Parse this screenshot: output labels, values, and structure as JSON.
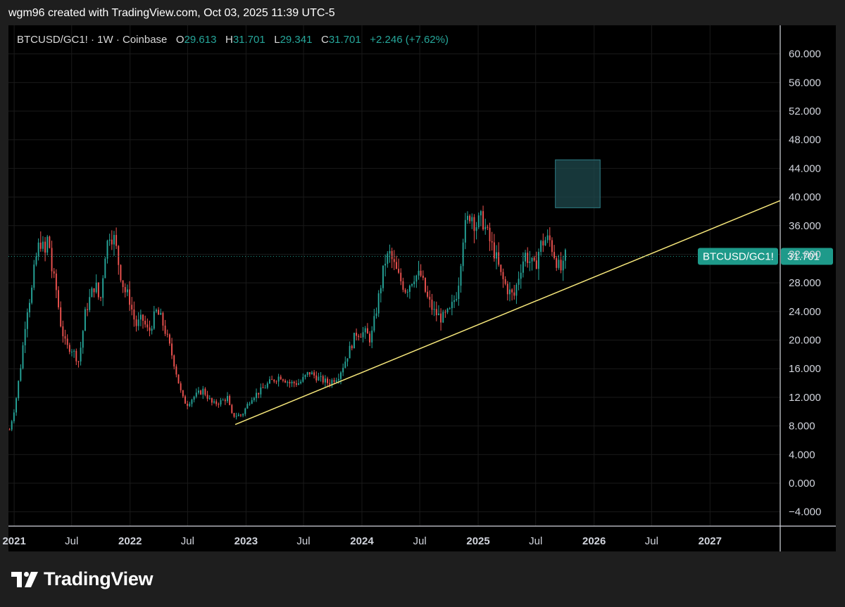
{
  "attribution": "wgm96 created with TradingView.com, Oct 03, 2025 11:39 UTC-5",
  "legend": {
    "symbol": "BTCUSD/GC1! · 1W · Coinbase",
    "open_label": "O",
    "open": "29.613",
    "high_label": "H",
    "high": "31.701",
    "low_label": "L",
    "low": "29.341",
    "close_label": "C",
    "close": "31.701",
    "change": "+2.246 (+7.62%)"
  },
  "logo_text": "TradingView",
  "colors": {
    "up": "#26a69a",
    "down": "#ef5350",
    "trendline": "#f5e67a",
    "zone": "#1f4a4e",
    "last_price_badge": "#1e9a8a",
    "background": "#000000",
    "grid": "#1a1a1a"
  },
  "chart_data": {
    "type": "candlestick",
    "symbol": "BTCUSD/GC1!",
    "interval": "1W",
    "exchange": "Coinbase",
    "ylim": [
      -6,
      64
    ],
    "y_ticks": [
      60,
      56,
      52,
      48,
      44,
      40,
      36,
      32,
      28,
      24,
      20,
      16,
      12,
      8,
      4,
      0,
      -4
    ],
    "y_tick_labels": [
      "60.000",
      "56.000",
      "52.000",
      "48.000",
      "44.000",
      "40.000",
      "36.000",
      "32.000",
      "28.000",
      "24.000",
      "20.000",
      "16.000",
      "12.000",
      "8.000",
      "4.000",
      "0.000",
      "−4.000"
    ],
    "x_range": [
      "2020-12-14",
      "2027-08-10"
    ],
    "x_ticks": [
      {
        "label": "2021",
        "date": "2021-01-01",
        "major": true
      },
      {
        "label": "Jul",
        "date": "2021-07-01",
        "major": false
      },
      {
        "label": "2022",
        "date": "2022-01-01",
        "major": true
      },
      {
        "label": "Jul",
        "date": "2022-07-01",
        "major": false
      },
      {
        "label": "2023",
        "date": "2023-01-01",
        "major": true
      },
      {
        "label": "Jul",
        "date": "2023-07-01",
        "major": false
      },
      {
        "label": "2024",
        "date": "2024-01-01",
        "major": true
      },
      {
        "label": "Jul",
        "date": "2024-07-01",
        "major": false
      },
      {
        "label": "2025",
        "date": "2025-01-01",
        "major": true
      },
      {
        "label": "Jul",
        "date": "2025-07-01",
        "major": false
      },
      {
        "label": "2026",
        "date": "2026-01-01",
        "major": true
      },
      {
        "label": "Jul",
        "date": "2026-07-01",
        "major": false
      },
      {
        "label": "2027",
        "date": "2027-01-01",
        "major": true
      }
    ],
    "close_path": [
      [
        "2020-12-14",
        7.5
      ],
      [
        "2021-01-01",
        11
      ],
      [
        "2021-01-20",
        17
      ],
      [
        "2021-02-05",
        24
      ],
      [
        "2021-02-22",
        27
      ],
      [
        "2021-03-05",
        31
      ],
      [
        "2021-03-20",
        34
      ],
      [
        "2021-04-05",
        32
      ],
      [
        "2021-04-15",
        35
      ],
      [
        "2021-04-25",
        30
      ],
      [
        "2021-05-10",
        27
      ],
      [
        "2021-05-25",
        22
      ],
      [
        "2021-06-10",
        19
      ],
      [
        "2021-06-25",
        19
      ],
      [
        "2021-07-20",
        17
      ],
      [
        "2021-08-10",
        24
      ],
      [
        "2021-08-25",
        26
      ],
      [
        "2021-09-10",
        28
      ],
      [
        "2021-09-25",
        25
      ],
      [
        "2021-10-10",
        32
      ],
      [
        "2021-10-25",
        35
      ],
      [
        "2021-11-10",
        34
      ],
      [
        "2021-11-25",
        30
      ],
      [
        "2021-12-10",
        27
      ],
      [
        "2021-12-25",
        26
      ],
      [
        "2022-01-15",
        22
      ],
      [
        "2022-02-05",
        23
      ],
      [
        "2022-02-25",
        21
      ],
      [
        "2022-03-20",
        24
      ],
      [
        "2022-04-05",
        23
      ],
      [
        "2022-04-20",
        21
      ],
      [
        "2022-05-15",
        17
      ],
      [
        "2022-06-10",
        12
      ],
      [
        "2022-06-25",
        11
      ],
      [
        "2022-07-15",
        12
      ],
      [
        "2022-08-15",
        13
      ],
      [
        "2022-09-15",
        11
      ],
      [
        "2022-10-15",
        11.5
      ],
      [
        "2022-11-01",
        12
      ],
      [
        "2022-11-12",
        9.5
      ],
      [
        "2022-12-15",
        9.5
      ],
      [
        "2023-01-15",
        12
      ],
      [
        "2023-02-15",
        13
      ],
      [
        "2023-03-10",
        14
      ],
      [
        "2023-04-15",
        15
      ],
      [
        "2023-05-15",
        14
      ],
      [
        "2023-06-15",
        14
      ],
      [
        "2023-07-15",
        15.5
      ],
      [
        "2023-08-20",
        14.5
      ],
      [
        "2023-09-15",
        14
      ],
      [
        "2023-10-15",
        15
      ],
      [
        "2023-11-05",
        17
      ],
      [
        "2023-12-10",
        21
      ],
      [
        "2024-01-10",
        21
      ],
      [
        "2024-01-25",
        20
      ],
      [
        "2024-02-15",
        25
      ],
      [
        "2024-03-10",
        31
      ],
      [
        "2024-03-25",
        32
      ],
      [
        "2024-04-20",
        29
      ],
      [
        "2024-05-15",
        27
      ],
      [
        "2024-06-10",
        29
      ],
      [
        "2024-07-01",
        29
      ],
      [
        "2024-07-20",
        26
      ],
      [
        "2024-08-10",
        24
      ],
      [
        "2024-09-05",
        23
      ],
      [
        "2024-10-01",
        24
      ],
      [
        "2024-10-25",
        27
      ],
      [
        "2024-11-12",
        35
      ],
      [
        "2024-12-05",
        38
      ],
      [
        "2024-12-20",
        36
      ],
      [
        "2025-01-10",
        37
      ],
      [
        "2025-02-01",
        34
      ],
      [
        "2025-02-20",
        32
      ],
      [
        "2025-03-10",
        29
      ],
      [
        "2025-04-01",
        27
      ],
      [
        "2025-04-20",
        26
      ],
      [
        "2025-05-10",
        30
      ],
      [
        "2025-05-25",
        32
      ],
      [
        "2025-06-10",
        31
      ],
      [
        "2025-06-25",
        30
      ],
      [
        "2025-07-10",
        33
      ],
      [
        "2025-07-25",
        34
      ],
      [
        "2025-08-10",
        34
      ],
      [
        "2025-08-25",
        32
      ],
      [
        "2025-09-10",
        30
      ],
      [
        "2025-09-20",
        29.6
      ],
      [
        "2025-09-29",
        31.7
      ]
    ],
    "annotations": {
      "trendline": {
        "from": [
          "2022-11-28",
          8.2
        ],
        "to": [
          "2027-08-10",
          39.5
        ]
      },
      "target_zone": {
        "x0": "2025-09-01",
        "x1": "2026-01-20",
        "y0": 38.5,
        "y1": 45.2
      },
      "last_price": {
        "label": "BTCUSD/GC1!",
        "value": 31.701,
        "display": "31.701"
      }
    }
  }
}
